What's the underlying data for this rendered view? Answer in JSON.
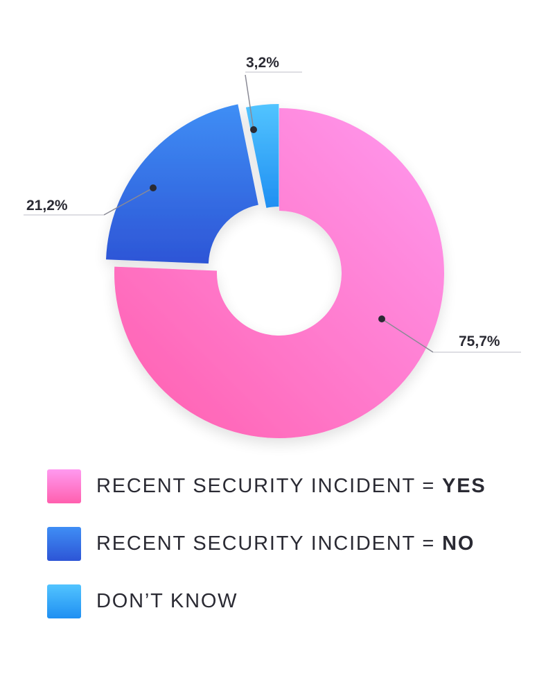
{
  "chart_data": {
    "type": "pie",
    "donut": true,
    "start_angle_deg": 0,
    "direction": "clockwise",
    "slices": [
      {
        "key": "yes",
        "label": "75,7%",
        "value": 75.7,
        "color_start": "#ff9af0",
        "color_end": "#ff5fae"
      },
      {
        "key": "no",
        "label": "21,2%",
        "value": 21.2,
        "color_start": "#3f8ef5",
        "color_end": "#2d55d6"
      },
      {
        "key": "dont_know",
        "label": "3,2%",
        "value": 3.2,
        "color_start": "#52c4ff",
        "color_end": "#1f8ff2"
      }
    ]
  },
  "legend": {
    "items": [
      {
        "text": "RECENT SECURITY INCIDENT =",
        "strong": "YES"
      },
      {
        "text": "RECENT SECURITY INCIDENT =",
        "strong": "NO"
      },
      {
        "text": "DON’T KNOW",
        "strong": ""
      }
    ]
  }
}
